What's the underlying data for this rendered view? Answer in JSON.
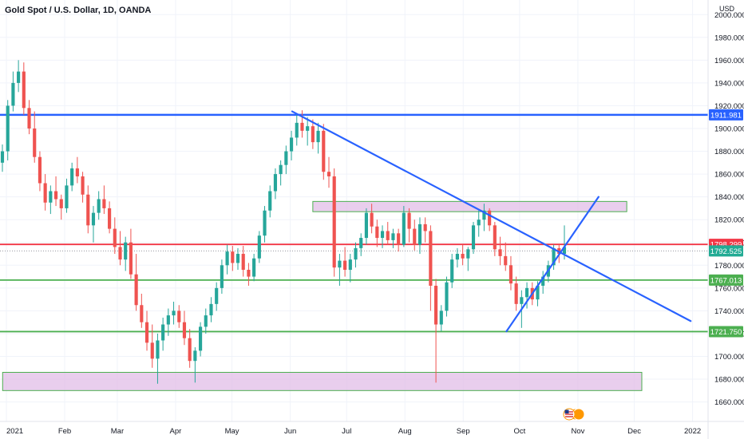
{
  "chart_data": {
    "type": "candlestick",
    "title": "Gold Spot / U.S. Dollar, 1D, OANDA",
    "currency": "USD",
    "y_ticks": [
      1660,
      1680,
      1700,
      1720,
      1740,
      1760,
      1780,
      1800,
      1820,
      1840,
      1860,
      1880,
      1900,
      1920,
      1940,
      1960,
      1980,
      2000
    ],
    "y_tick_labels": [
      "1660.000",
      "1680.000",
      "1700.000",
      "1720.000",
      "1740.000",
      "1760.000",
      "1780.000",
      "1800.000",
      "1820.000",
      "1840.000",
      "1860.000",
      "1880.000",
      "1900.000",
      "1920.000",
      "1940.000",
      "1960.000",
      "1980.000",
      "2000.000"
    ],
    "x_labels": [
      "2021",
      "Feb",
      "Mar",
      "Apr",
      "May",
      "Jun",
      "Jul",
      "Aug",
      "Sep",
      "Oct",
      "Nov",
      "Dec",
      "2022"
    ],
    "x_label_days": [
      0,
      31,
      59,
      90,
      120,
      151,
      181,
      212,
      243,
      273,
      304,
      334,
      365
    ],
    "ylim": [
      1650,
      2010
    ],
    "price_lines": [
      {
        "name": "resistance",
        "value": 1911.981,
        "label": "1911.981",
        "color": "#2962ff"
      },
      {
        "name": "current-high",
        "value": 1798.299,
        "label": "1798.299",
        "color": "#f23645"
      },
      {
        "name": "last-price",
        "value": 1792.525,
        "label": "1792.525",
        "color": "#22ab94"
      },
      {
        "name": "support-1",
        "value": 1767.013,
        "label": "1767.013",
        "color": "#4caf50"
      },
      {
        "name": "support-2",
        "value": 1721.75,
        "label": "1721.750",
        "color": "#4caf50"
      }
    ],
    "zones": [
      {
        "name": "upper-zone",
        "day_start": 163,
        "day_end": 330,
        "low": 1827,
        "high": 1836
      },
      {
        "name": "lower-zone",
        "day_start": -2,
        "day_end": 338,
        "low": 1670,
        "high": 1686
      }
    ],
    "trendlines": [
      {
        "name": "descending-trendline",
        "from": [
          152,
          1915
        ],
        "to": [
          364,
          1731
        ]
      },
      {
        "name": "ascending-trendline",
        "from": [
          266,
          1722
        ],
        "to": [
          315,
          1840
        ]
      }
    ],
    "candles_ohlc": [
      [
        1870,
        1886,
        1862,
        1880
      ],
      [
        1880,
        1925,
        1872,
        1920
      ],
      [
        1920,
        1950,
        1915,
        1940
      ],
      [
        1940,
        1960,
        1932,
        1950
      ],
      [
        1950,
        1958,
        1912,
        1918
      ],
      [
        1918,
        1925,
        1895,
        1900
      ],
      [
        1900,
        1915,
        1870,
        1875
      ],
      [
        1875,
        1880,
        1845,
        1852
      ],
      [
        1852,
        1860,
        1828,
        1835
      ],
      [
        1835,
        1850,
        1825,
        1845
      ],
      [
        1845,
        1858,
        1832,
        1838
      ],
      [
        1838,
        1842,
        1820,
        1830
      ],
      [
        1830,
        1856,
        1826,
        1850
      ],
      [
        1850,
        1870,
        1845,
        1865
      ],
      [
        1865,
        1875,
        1852,
        1858
      ],
      [
        1858,
        1862,
        1835,
        1842
      ],
      [
        1842,
        1850,
        1808,
        1815
      ],
      [
        1815,
        1832,
        1800,
        1826
      ],
      [
        1826,
        1845,
        1820,
        1838
      ],
      [
        1838,
        1850,
        1825,
        1830
      ],
      [
        1830,
        1836,
        1808,
        1812
      ],
      [
        1812,
        1822,
        1790,
        1796
      ],
      [
        1796,
        1810,
        1780,
        1785
      ],
      [
        1785,
        1805,
        1775,
        1800
      ],
      [
        1800,
        1812,
        1768,
        1772
      ],
      [
        1772,
        1790,
        1740,
        1745
      ],
      [
        1745,
        1755,
        1725,
        1730
      ],
      [
        1730,
        1740,
        1705,
        1712
      ],
      [
        1712,
        1728,
        1690,
        1698
      ],
      [
        1698,
        1720,
        1676,
        1714
      ],
      [
        1714,
        1734,
        1705,
        1728
      ],
      [
        1728,
        1742,
        1718,
        1736
      ],
      [
        1736,
        1748,
        1728,
        1740
      ],
      [
        1740,
        1745,
        1725,
        1730
      ],
      [
        1730,
        1740,
        1710,
        1716
      ],
      [
        1716,
        1724,
        1690,
        1696
      ],
      [
        1696,
        1708,
        1677,
        1705
      ],
      [
        1705,
        1730,
        1700,
        1726
      ],
      [
        1726,
        1742,
        1720,
        1736
      ],
      [
        1736,
        1752,
        1730,
        1746
      ],
      [
        1746,
        1765,
        1740,
        1760
      ],
      [
        1760,
        1785,
        1755,
        1780
      ],
      [
        1780,
        1798,
        1772,
        1792
      ],
      [
        1792,
        1797,
        1775,
        1782
      ],
      [
        1782,
        1795,
        1776,
        1790
      ],
      [
        1790,
        1797,
        1770,
        1776
      ],
      [
        1776,
        1782,
        1762,
        1770
      ],
      [
        1770,
        1790,
        1766,
        1786
      ],
      [
        1786,
        1810,
        1782,
        1806
      ],
      [
        1806,
        1832,
        1800,
        1828
      ],
      [
        1828,
        1850,
        1822,
        1845
      ],
      [
        1845,
        1865,
        1838,
        1860
      ],
      [
        1860,
        1872,
        1850,
        1868
      ],
      [
        1868,
        1885,
        1860,
        1880
      ],
      [
        1880,
        1898,
        1872,
        1892
      ],
      [
        1892,
        1912,
        1885,
        1905
      ],
      [
        1905,
        1916,
        1892,
        1898
      ],
      [
        1898,
        1910,
        1885,
        1902
      ],
      [
        1902,
        1908,
        1882,
        1888
      ],
      [
        1888,
        1905,
        1878,
        1898
      ],
      [
        1898,
        1904,
        1855,
        1862
      ],
      [
        1862,
        1875,
        1848,
        1858
      ],
      [
        1858,
        1865,
        1770,
        1778
      ],
      [
        1778,
        1790,
        1762,
        1784
      ],
      [
        1784,
        1796,
        1770,
        1776
      ],
      [
        1776,
        1790,
        1765,
        1785
      ],
      [
        1785,
        1800,
        1778,
        1795
      ],
      [
        1795,
        1808,
        1788,
        1804
      ],
      [
        1804,
        1830,
        1798,
        1826
      ],
      [
        1826,
        1834,
        1808,
        1814
      ],
      [
        1814,
        1820,
        1796,
        1804
      ],
      [
        1804,
        1815,
        1795,
        1810
      ],
      [
        1810,
        1818,
        1798,
        1802
      ],
      [
        1802,
        1812,
        1795,
        1808
      ],
      [
        1808,
        1812,
        1792,
        1798
      ],
      [
        1798,
        1832,
        1796,
        1826
      ],
      [
        1826,
        1830,
        1800,
        1812
      ],
      [
        1812,
        1820,
        1793,
        1798
      ],
      [
        1798,
        1822,
        1790,
        1816
      ],
      [
        1816,
        1822,
        1800,
        1810
      ],
      [
        1810,
        1815,
        1740,
        1762
      ],
      [
        1762,
        1768,
        1677,
        1728
      ],
      [
        1728,
        1745,
        1722,
        1740
      ],
      [
        1740,
        1770,
        1735,
        1765
      ],
      [
        1765,
        1790,
        1760,
        1785
      ],
      [
        1785,
        1795,
        1778,
        1790
      ],
      [
        1790,
        1798,
        1780,
        1786
      ],
      [
        1786,
        1796,
        1775,
        1794
      ],
      [
        1794,
        1818,
        1790,
        1815
      ],
      [
        1815,
        1828,
        1805,
        1820
      ],
      [
        1820,
        1834,
        1810,
        1828
      ],
      [
        1828,
        1830,
        1810,
        1815
      ],
      [
        1815,
        1818,
        1788,
        1794
      ],
      [
        1794,
        1805,
        1780,
        1788
      ],
      [
        1788,
        1800,
        1775,
        1780
      ],
      [
        1780,
        1788,
        1758,
        1764
      ],
      [
        1764,
        1770,
        1740,
        1746
      ],
      [
        1746,
        1758,
        1725,
        1752
      ],
      [
        1752,
        1765,
        1742,
        1760
      ],
      [
        1760,
        1765,
        1745,
        1750
      ],
      [
        1750,
        1766,
        1744,
        1762
      ],
      [
        1762,
        1775,
        1755,
        1770
      ],
      [
        1770,
        1784,
        1765,
        1780
      ],
      [
        1780,
        1798,
        1776,
        1795
      ],
      [
        1795,
        1799,
        1782,
        1790
      ],
      [
        1790,
        1815,
        1785,
        1796
      ]
    ],
    "grid": true
  }
}
